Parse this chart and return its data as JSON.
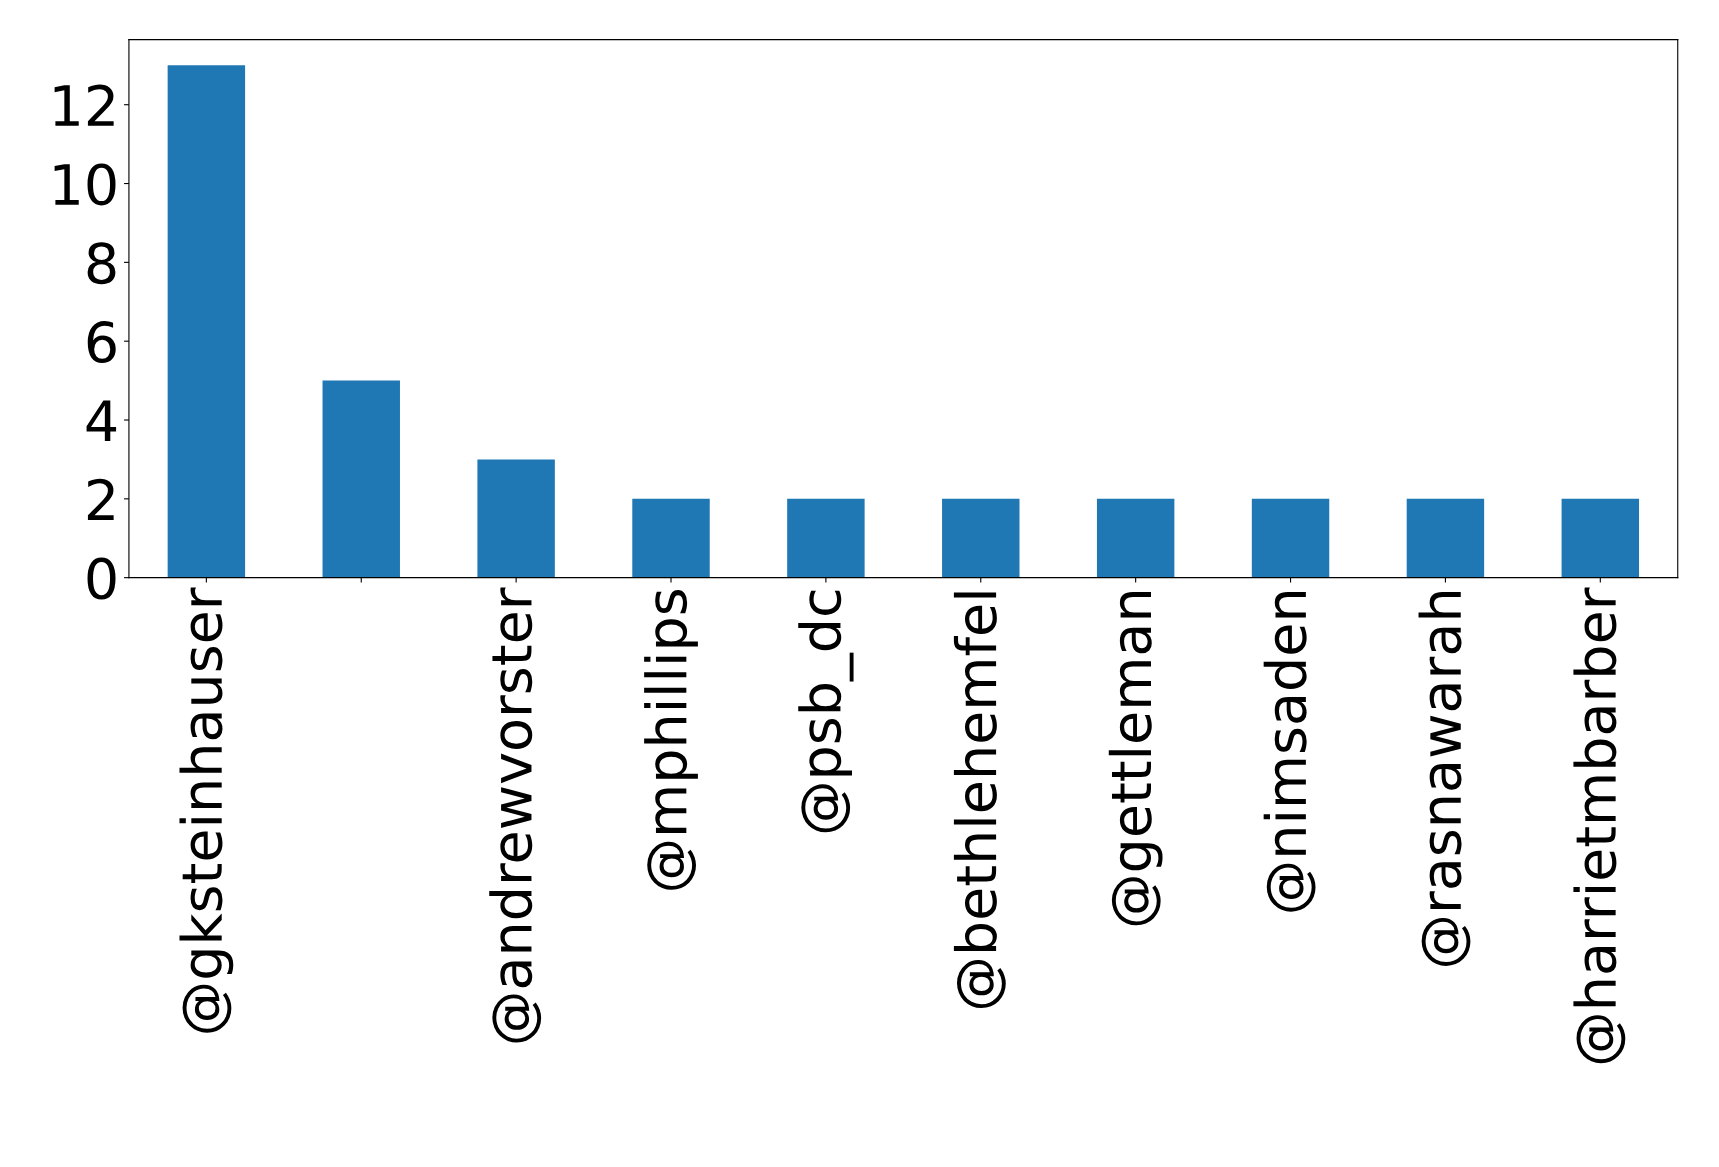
{
  "chart_data": {
    "type": "bar",
    "categories": [
      "@gksteinhauser",
      null,
      "@andrewvorster",
      "@mphillips",
      "@psb_dc",
      "@bethlehemfel",
      "@gettleman",
      "@nimsaden",
      "@rasnawarah",
      "@harrietmbarber"
    ],
    "values": [
      13,
      5,
      3,
      2,
      2,
      2,
      2,
      2,
      2,
      2
    ],
    "color": "#1f77b4",
    "ylim": [
      0,
      13.65
    ],
    "yticks": [
      0,
      2,
      4,
      6,
      8,
      10,
      12
    ],
    "grid": false
  }
}
